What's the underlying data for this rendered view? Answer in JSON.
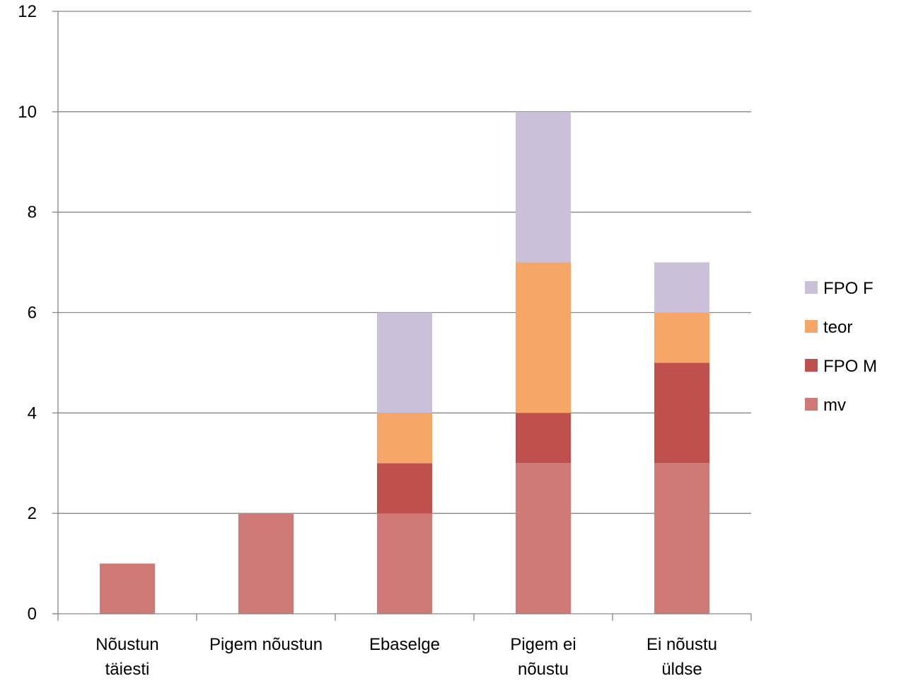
{
  "chart_data": {
    "type": "bar",
    "stacked": true,
    "title": "",
    "xlabel": "",
    "ylabel": "",
    "ylim": [
      0,
      12
    ],
    "yticks": [
      "0",
      "2",
      "4",
      "6",
      "8",
      "10",
      "12"
    ],
    "grid": true,
    "legend_position": "right",
    "categories": [
      [
        "Nõustun",
        "täiesti"
      ],
      [
        "Pigem nõustun"
      ],
      [
        "Ebaselge"
      ],
      [
        "Pigem ei",
        "nõustu"
      ],
      [
        "Ei nõustu",
        "üldse"
      ]
    ],
    "series": [
      {
        "name": "mv",
        "color": "#d07a78",
        "values": [
          1,
          2,
          2,
          3,
          3
        ]
      },
      {
        "name": "FPO M",
        "color": "#c0504d",
        "values": [
          0,
          0,
          1,
          1,
          2
        ]
      },
      {
        "name": "teor",
        "color": "#f6a666",
        "values": [
          0,
          0,
          1,
          3,
          1
        ]
      },
      {
        "name": "FPO F",
        "color": "#cbc0da",
        "values": [
          0,
          0,
          2,
          3,
          1
        ]
      }
    ],
    "legend_order": [
      "FPO F",
      "teor",
      "FPO M",
      "mv"
    ]
  }
}
